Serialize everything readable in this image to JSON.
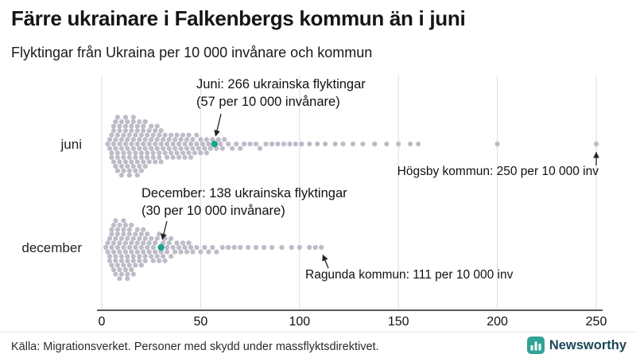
{
  "header": {
    "title": "Färre ukrainare i Falkenbergs kommun än i juni",
    "subtitle": "Flyktingar från Ukraina per 10 000 invånare och kommun"
  },
  "annotations": {
    "juni": {
      "line1": "Juni: 266 ukrainska flyktingar",
      "line2": "(57 per 10 000 invånare)"
    },
    "hogsby": {
      "text": "Högsby kommun: 250 per 10 000 inv"
    },
    "december": {
      "line1": "December: 138 ukrainska flyktingar",
      "line2": "(30 per 10 000 invånare)"
    },
    "ragunda": {
      "text": "Ragunda kommun: 111 per 10 000 inv"
    }
  },
  "footer": {
    "source": "Källa: Migrationsverket. Personer med skydd under massflyktsdirektivet.",
    "brand": "Newsworthy"
  },
  "colors": {
    "dot": "#b9b8c5",
    "highlight": "#1ba390",
    "grid": "#dddde2",
    "axis": "#222222",
    "brand_teal": "#2fa294",
    "brand_text": "#1d4757"
  },
  "chart_data": {
    "type": "beeswarm",
    "title": "Färre ukrainare i Falkenbergs kommun än i juni",
    "subtitle": "Flyktingar från Ukraina per 10 000 invånare och kommun",
    "unit": "flyktingar per 10 000 invånare",
    "x_ticks": [
      0,
      50,
      100,
      150,
      200,
      250
    ],
    "xlim": [
      0,
      260
    ],
    "legend": "off",
    "grid": "vertical",
    "rows": [
      {
        "label": "juni",
        "highlight": {
          "value": 57,
          "refugees": 266,
          "note": "Juni: 266 ukrainska flyktingar (57 per 10 000 invånare)"
        },
        "max": {
          "label": "Högsby kommun",
          "value": 250
        },
        "values": [
          3,
          4,
          4,
          5,
          5,
          5,
          6,
          6,
          6,
          6,
          7,
          7,
          7,
          7,
          8,
          8,
          8,
          8,
          8,
          9,
          9,
          9,
          9,
          10,
          10,
          10,
          10,
          10,
          11,
          11,
          11,
          11,
          12,
          12,
          12,
          12,
          12,
          13,
          13,
          13,
          13,
          14,
          14,
          14,
          14,
          14,
          15,
          15,
          15,
          15,
          16,
          16,
          16,
          16,
          16,
          17,
          17,
          17,
          17,
          18,
          18,
          18,
          18,
          18,
          19,
          19,
          19,
          19,
          20,
          20,
          20,
          20,
          21,
          21,
          21,
          21,
          22,
          22,
          22,
          22,
          23,
          23,
          23,
          24,
          24,
          24,
          25,
          25,
          25,
          26,
          26,
          26,
          27,
          27,
          27,
          28,
          28,
          28,
          29,
          29,
          29,
          30,
          30,
          30,
          31,
          31,
          32,
          32,
          33,
          33,
          34,
          34,
          35,
          35,
          36,
          36,
          37,
          37,
          38,
          38,
          39,
          39,
          40,
          40,
          41,
          41,
          42,
          42,
          43,
          43,
          44,
          44,
          45,
          45,
          46,
          46,
          47,
          48,
          48,
          49,
          50,
          50,
          51,
          52,
          53,
          53,
          54,
          55,
          56,
          58,
          59,
          60,
          61,
          62,
          64,
          66,
          68,
          70,
          72,
          75,
          78,
          80,
          83,
          86,
          89,
          92,
          95,
          98,
          101,
          105,
          109,
          113,
          118,
          122,
          127,
          132,
          138,
          144,
          150,
          156,
          160,
          200,
          250
        ]
      },
      {
        "label": "december",
        "highlight": {
          "value": 30,
          "refugees": 138,
          "note": "December: 138 ukrainska flyktingar (30 per 10 000 invånare)"
        },
        "max": {
          "label": "Ragunda kommun",
          "value": 111
        },
        "values": [
          2,
          3,
          3,
          4,
          4,
          4,
          5,
          5,
          5,
          5,
          6,
          6,
          6,
          6,
          7,
          7,
          7,
          7,
          7,
          8,
          8,
          8,
          8,
          9,
          9,
          9,
          9,
          9,
          10,
          10,
          10,
          10,
          11,
          11,
          11,
          11,
          11,
          12,
          12,
          12,
          12,
          13,
          13,
          13,
          13,
          13,
          14,
          14,
          14,
          14,
          15,
          15,
          15,
          15,
          16,
          16,
          16,
          16,
          17,
          17,
          17,
          18,
          18,
          18,
          19,
          19,
          19,
          20,
          20,
          20,
          21,
          21,
          21,
          22,
          22,
          22,
          23,
          23,
          24,
          24,
          25,
          25,
          26,
          26,
          27,
          27,
          28,
          28,
          29,
          29,
          30,
          31,
          31,
          32,
          32,
          33,
          33,
          34,
          35,
          35,
          36,
          37,
          38,
          39,
          40,
          41,
          42,
          43,
          44,
          45,
          46,
          48,
          50,
          52,
          54,
          56,
          58,
          61,
          64,
          67,
          70,
          74,
          78,
          82,
          86,
          91,
          96,
          100,
          105,
          108,
          111
        ]
      }
    ]
  }
}
